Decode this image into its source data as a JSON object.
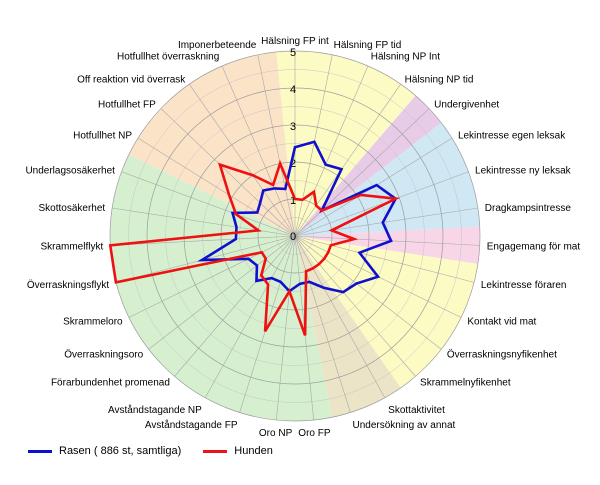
{
  "chart_data": {
    "type": "radar",
    "axes": [
      "Hälsning FP int",
      "Hälsning FP tid",
      "Hälsning NP Int",
      "Hälsning NP tid",
      "Undergivenhet",
      "Lekintresse egen leksak",
      "Lekintresse ny leksak",
      "Dragkampsintresse",
      "Engagemang för mat",
      "Lekintresse föraren",
      "Kontakt vid mat",
      "Överraskningsnyfikenhet",
      "Skrammelnyfikenhet",
      "Skottaktivitet",
      "Undersökning av annat",
      "Oro FP",
      "Oro NP",
      "Avståndstagande FP",
      "Avståndstagande NP",
      "Förarbundenhet promenad",
      "Överraskningsoro",
      "Skrammeloro",
      "Överraskningsflykt",
      "Skrammelflykt",
      "Skottosäkerhet",
      "Underlagsosäkerhet",
      "Hotfullhet NP",
      "Hotfullhet FP",
      "Off reaktion vid överrask",
      "Hotfullhet överraskning",
      "Imponerbeteende"
    ],
    "radial_ticks": [
      0,
      1,
      2,
      3,
      4,
      5
    ],
    "rlim": [
      0,
      5
    ],
    "grid": true,
    "legend_position": "bottom-left",
    "series": [
      {
        "name": "Rasen ( 886 st, samtliga)",
        "color": "#1010cc",
        "values": [
          2.4,
          2.6,
          2.1,
          2.2,
          1.0,
          2.6,
          2.9,
          2.4,
          2.6,
          1.8,
          2.5,
          2.1,
          2.0,
          1.6,
          1.3,
          1.3,
          1.5,
          1.3,
          1.3,
          1.6,
          1.3,
          1.4,
          2.6,
          1.6,
          1.6,
          1.8,
          1.2,
          1.3,
          1.5,
          1.4,
          1.3
        ]
      },
      {
        "name": "Hunden",
        "color": "#ee1111",
        "values": [
          1.0,
          1.0,
          1.3,
          1.0,
          1.0,
          2.1,
          2.9,
          1.0,
          1.6,
          1.0,
          1.0,
          1.0,
          1.0,
          1.0,
          1.0,
          2.7,
          1.5,
          2.7,
          1.5,
          1.4,
          1.0,
          1.0,
          5.0,
          5.0,
          1.0,
          1.7,
          2.1,
          2.8,
          2.0,
          1.5,
          2.0
        ]
      }
    ]
  }
}
